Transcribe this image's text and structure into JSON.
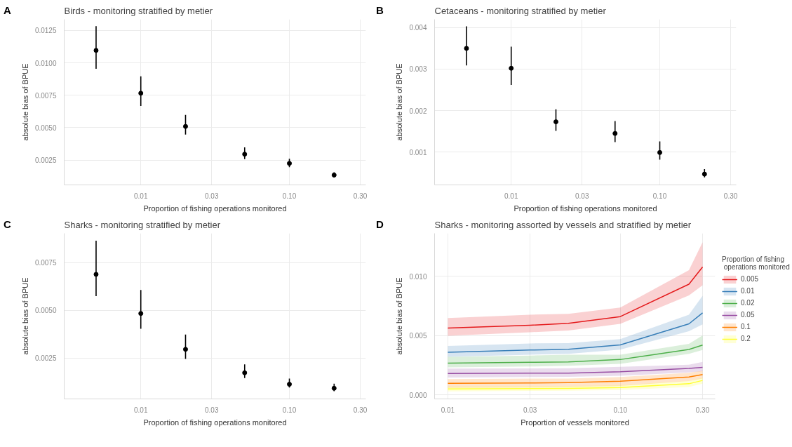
{
  "chart_data": [
    {
      "type": "scatter",
      "title": "Birds -  monitoring stratified by metier",
      "annotations": [
        "A"
      ],
      "xlabel": "Proportion of fishing operations monitored",
      "ylabel": "absolute bias of BPUE",
      "log": "x",
      "grid": true,
      "marker": "circle",
      "x": [
        0.005,
        0.01,
        0.02,
        0.05,
        0.1,
        0.2
      ],
      "series": [
        {
          "color": "#000000",
          "values": [
            0.01096,
            0.00766,
            0.0051,
            0.00296,
            0.00225,
            0.00135
          ],
          "errors": [
            [
              0.00955,
              0.01283
            ],
            [
              0.00668,
              0.00896
            ],
            [
              0.00447,
              0.00599
            ],
            [
              0.00258,
              0.00349
            ],
            [
              0.00196,
              0.0026
            ],
            [
              0.00118,
              0.00157
            ]
          ]
        }
      ],
      "xlim": [
        0.00305,
        0.327
      ],
      "xticks": [
        {
          "value": 0.01,
          "label": "0.01"
        },
        {
          "value": 0.03,
          "label": "0.03"
        },
        {
          "value": 0.1,
          "label": "0.10"
        },
        {
          "value": 0.3,
          "label": "0.30"
        }
      ],
      "ylim": [
        0.00059,
        0.01336
      ],
      "yticks": [
        {
          "value": 0.0025,
          "label": "0.0025"
        },
        {
          "value": 0.005,
          "label": "0.0050"
        },
        {
          "value": 0.0075,
          "label": "0.0075"
        },
        {
          "value": 0.01,
          "label": "0.0100"
        },
        {
          "value": 0.0125,
          "label": "0.0125"
        }
      ]
    },
    {
      "type": "scatter",
      "title": "Cetaceans -  monitoring stratified by metier",
      "annotations": [
        "B"
      ],
      "xlabel": "Proportion of fishing operations monitored",
      "ylabel": "absolute bias of BPUE",
      "log": "x",
      "grid": true,
      "marker": "circle",
      "x": [
        0.005,
        0.01,
        0.02,
        0.05,
        0.1,
        0.2
      ],
      "series": [
        {
          "color": "#000000",
          "values": [
            0.0035,
            0.00302,
            0.00173,
            0.00145,
            0.00099,
            0.00047
          ],
          "errors": [
            [
              0.00309,
              0.00403
            ],
            [
              0.00262,
              0.00354
            ],
            [
              0.00151,
              0.00203
            ],
            [
              0.00124,
              0.00175
            ],
            [
              0.00082,
              0.00126
            ],
            [
              0.00039,
              0.00059
            ]
          ]
        }
      ],
      "xlim": [
        0.00305,
        0.327
      ],
      "xticks": [
        {
          "value": 0.01,
          "label": "0.01"
        },
        {
          "value": 0.03,
          "label": "0.03"
        },
        {
          "value": 0.1,
          "label": "0.10"
        },
        {
          "value": 0.3,
          "label": "0.30"
        }
      ],
      "ylim": [
        0.00021,
        0.0042
      ],
      "yticks": [
        0.001,
        0.002,
        0.003,
        0.004
      ]
    },
    {
      "type": "scatter",
      "title": "Sharks -  monitoring stratified by metier",
      "annotations": [
        "C"
      ],
      "xlabel": "Proportion of fishing operations monitored",
      "ylabel": "absolute bias of BPUE",
      "log": "x",
      "grid": true,
      "marker": "circle",
      "x": [
        0.005,
        0.01,
        0.02,
        0.05,
        0.1,
        0.2
      ],
      "series": [
        {
          "color": "#000000",
          "values": [
            0.00689,
            0.00484,
            0.00296,
            0.00173,
            0.00113,
            0.00092
          ],
          "errors": [
            [
              0.00575,
              0.00865
            ],
            [
              0.00404,
              0.00607
            ],
            [
              0.00246,
              0.00373
            ],
            [
              0.00145,
              0.00217
            ],
            [
              0.00096,
              0.00143
            ],
            [
              0.00076,
              0.00116
            ]
          ]
        }
      ],
      "xlim": [
        0.00305,
        0.327
      ],
      "xticks": [
        {
          "value": 0.01,
          "label": "0.01"
        },
        {
          "value": 0.03,
          "label": "0.03"
        },
        {
          "value": 0.1,
          "label": "0.10"
        },
        {
          "value": 0.3,
          "label": "0.30"
        }
      ],
      "ylim": [
        0.00036,
        0.00904
      ],
      "yticks": [
        {
          "value": 0.0025,
          "label": "0.0025"
        },
        {
          "value": 0.005,
          "label": "0.0050"
        },
        {
          "value": 0.0075,
          "label": "0.0075"
        }
      ]
    },
    {
      "type": "line",
      "title": "Sharks - monitoring assorted by vessels and stratified by metier",
      "annotations": [
        "D"
      ],
      "xlabel": "Proportion of vessels monitored",
      "ylabel": "absolute bias of BPUE",
      "log": "x",
      "grid": true,
      "legend": "right",
      "legend_title": "Proportion of fishing\n operations monitored",
      "line_style": "solid",
      "x": [
        0.01,
        0.03,
        0.05,
        0.1,
        0.25,
        0.3
      ],
      "series": [
        {
          "name": "0.005",
          "color": "#e41a1c",
          "values": [
            0.00564,
            0.00587,
            0.00603,
            0.0066,
            0.00933,
            0.01078
          ],
          "lower": [
            0.00498,
            0.00528,
            0.00543,
            0.00599,
            0.00839,
            0.00924
          ],
          "upper": [
            0.00647,
            0.00676,
            0.00683,
            0.00736,
            0.01051,
            0.01287
          ]
        },
        {
          "name": "0.01",
          "color": "#377eb8",
          "values": [
            0.0036,
            0.00378,
            0.00385,
            0.00422,
            0.00599,
            0.00691
          ],
          "lower": [
            0.00321,
            0.00339,
            0.00346,
            0.00381,
            0.00537,
            0.00594
          ],
          "upper": [
            0.00413,
            0.00434,
            0.00436,
            0.0047,
            0.00676,
            0.00835
          ]
        },
        {
          "name": "0.02",
          "color": "#4daf4a",
          "values": [
            0.00268,
            0.00275,
            0.00278,
            0.00298,
            0.00383,
            0.0042
          ],
          "lower": [
            0.00232,
            0.00239,
            0.00245,
            0.00262,
            0.00346,
            0.00378
          ],
          "upper": [
            0.00321,
            0.00332,
            0.00339,
            0.00339,
            0.00431,
            0.00502
          ]
        },
        {
          "name": "0.05",
          "color": "#984ea3",
          "values": [
            0.00181,
            0.00183,
            0.00184,
            0.00195,
            0.00223,
            0.00232
          ],
          "lower": [
            0.00147,
            0.00151,
            0.00152,
            0.00161,
            0.0019,
            0.002
          ],
          "upper": [
            0.00222,
            0.00223,
            0.00225,
            0.00236,
            0.00254,
            0.00278
          ]
        },
        {
          "name": "0.1",
          "color": "#ff7f00",
          "values": [
            0.00098,
            0.00101,
            0.00103,
            0.00115,
            0.00151,
            0.00172
          ],
          "lower": [
            0.00059,
            0.00062,
            0.00066,
            0.00076,
            0.00117,
            0.00138
          ],
          "upper": [
            0.00133,
            0.00137,
            0.00138,
            0.00151,
            0.00186,
            0.00204
          ]
        },
        {
          "name": "0.2",
          "color": "#ffff33",
          "values": [
            0.0005,
            0.00053,
            0.00055,
            0.00062,
            0.00094,
            0.00122
          ],
          "lower": [
            0.0003,
            0.00034,
            0.00035,
            0.00041,
            0.00066,
            0.00094
          ],
          "upper": [
            0.00073,
            0.00074,
            0.00076,
            0.00083,
            0.00119,
            0.00147
          ]
        }
      ],
      "xlim": [
        0.00838,
        0.355
      ],
      "xticks": [
        {
          "value": 0.01,
          "label": "0.01"
        },
        {
          "value": 0.03,
          "label": "0.03"
        },
        {
          "value": 0.1,
          "label": "0.10"
        },
        {
          "value": 0.3,
          "label": "0.30"
        }
      ],
      "ylim": [
        -0.00034,
        0.01362
      ],
      "yticks": [
        {
          "value": 0,
          "label": "0.000"
        },
        {
          "value": 0.005,
          "label": "0.005"
        },
        {
          "value": 0.01,
          "label": "0.010"
        }
      ]
    }
  ]
}
